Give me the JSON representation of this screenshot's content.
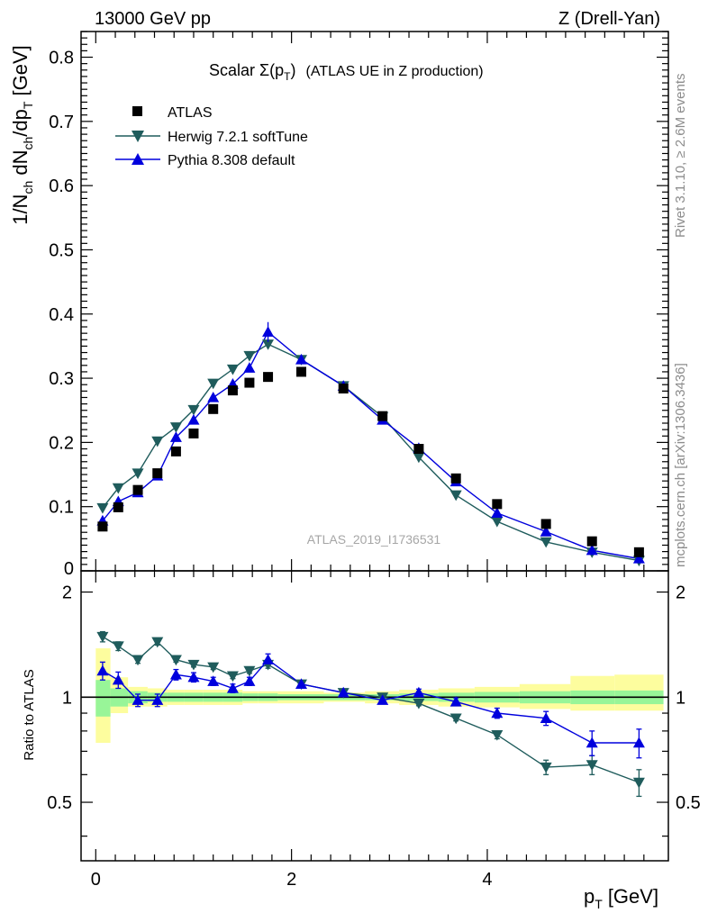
{
  "header": {
    "left": "13000 GeV pp",
    "right": "Z (Drell-Yan)"
  },
  "side_labels": {
    "top": "Rivet 3.1.10, ≥ 2.6M events",
    "bottom": "mcplots.cern.ch [arXiv:1306.3436]"
  },
  "watermark": "ATLAS_2019_I1736531",
  "colors": {
    "atlas": "#000000",
    "herwig": "#1f5c5c",
    "pythia": "#0000dd",
    "band_inner": "#98f598",
    "band_outer": "#fdfd9e"
  },
  "chart_data": [
    {
      "type": "scatter",
      "panel": "main",
      "title": "Scalar Σ(p_T) (ATLAS UE in Z production)",
      "title_parts": {
        "main": "Scalar Σ(p",
        "sub": "T",
        "close": ")",
        "rest": "(ATLAS UE in Z production)"
      },
      "ylabel": "1/N_ch dN_ch/dp_T [GeV]",
      "xlim": [
        -0.15,
        5.85
      ],
      "ylim": [
        0,
        0.84
      ],
      "yticks": [
        0.1,
        0.2,
        0.3,
        0.4,
        0.5,
        0.6,
        0.7,
        0.8
      ],
      "ytick_labels": [
        "0.1",
        "0.2",
        "0.3",
        "0.4",
        "0.5",
        "0.6",
        "0.7",
        "0.8"
      ],
      "ytick_zero_label": "0",
      "legend_position": "top-left",
      "series": [
        {
          "name": "ATLAS",
          "marker": "square",
          "x": [
            0.07,
            0.23,
            0.43,
            0.63,
            0.82,
            1.0,
            1.2,
            1.4,
            1.57,
            1.76,
            2.1,
            2.53,
            2.93,
            3.3,
            3.68,
            4.1,
            4.6,
            5.07,
            5.55
          ],
          "y": [
            0.069,
            0.099,
            0.126,
            0.152,
            0.186,
            0.214,
            0.252,
            0.281,
            0.293,
            0.302,
            0.31,
            0.284,
            0.241,
            0.19,
            0.144,
            0.104,
            0.073,
            0.046,
            0.029
          ]
        },
        {
          "name": "Herwig 7.2.1 softTune",
          "marker": "triangle-down",
          "x": [
            0.07,
            0.23,
            0.43,
            0.63,
            0.82,
            1.0,
            1.2,
            1.4,
            1.57,
            1.76,
            2.1,
            2.53,
            2.93,
            3.3,
            3.68,
            4.1,
            4.6,
            5.07,
            5.55
          ],
          "y": [
            0.098,
            0.129,
            0.152,
            0.202,
            0.224,
            0.251,
            0.292,
            0.314,
            0.335,
            0.353,
            0.329,
            0.288,
            0.24,
            0.177,
            0.118,
            0.077,
            0.045,
            0.029,
            0.016
          ]
        },
        {
          "name": "Pythia 8.308 default",
          "marker": "triangle-up",
          "x": [
            0.07,
            0.23,
            0.43,
            0.63,
            0.82,
            1.0,
            1.2,
            1.4,
            1.57,
            1.76,
            2.1,
            2.53,
            2.93,
            3.3,
            3.68,
            4.1,
            4.6,
            5.07,
            5.55
          ],
          "y": [
            0.078,
            0.108,
            0.122,
            0.148,
            0.208,
            0.235,
            0.27,
            0.291,
            0.316,
            0.372,
            0.329,
            0.288,
            0.235,
            0.191,
            0.139,
            0.09,
            0.061,
            0.032,
            0.019
          ]
        }
      ]
    },
    {
      "type": "line",
      "panel": "ratio",
      "ylabel": "Ratio to ATLAS",
      "xlabel": "p_T [GeV]",
      "xlabel_parts": {
        "main": "p",
        "sub": "T",
        "rest": "[GeV]"
      },
      "xlim": [
        -0.15,
        5.85
      ],
      "ylim": [
        0.34,
        2.3
      ],
      "yticks": [
        0.5,
        1,
        2
      ],
      "ytick_labels": [
        "0.5",
        "1",
        "2"
      ],
      "xticks": [
        0,
        2,
        4
      ],
      "xtick_labels": [
        "0",
        "2",
        "4"
      ],
      "band_edges": [
        0,
        0.15,
        0.33,
        0.53,
        0.73,
        0.9,
        1.1,
        1.3,
        1.5,
        1.66,
        1.86,
        2.33,
        2.75,
        3.1,
        3.5,
        3.87,
        4.33,
        4.85,
        5.3,
        5.8
      ],
      "band_inner": [
        [
          0.88,
          1.12
        ],
        [
          0.94,
          1.06
        ],
        [
          0.96,
          1.04
        ],
        [
          0.97,
          1.03
        ],
        [
          0.97,
          1.03
        ],
        [
          0.97,
          1.03
        ],
        [
          0.97,
          1.03
        ],
        [
          0.97,
          1.03
        ],
        [
          0.975,
          1.025
        ],
        [
          0.975,
          1.025
        ],
        [
          0.98,
          1.02
        ],
        [
          0.98,
          1.02
        ],
        [
          0.98,
          1.02
        ],
        [
          0.975,
          1.025
        ],
        [
          0.97,
          1.03
        ],
        [
          0.965,
          1.035
        ],
        [
          0.96,
          1.04
        ],
        [
          0.955,
          1.045
        ],
        [
          0.955,
          1.045
        ]
      ],
      "band_outer": [
        [
          0.74,
          1.38
        ],
        [
          0.9,
          1.14
        ],
        [
          0.94,
          1.07
        ],
        [
          0.94,
          1.06
        ],
        [
          0.95,
          1.05
        ],
        [
          0.95,
          1.05
        ],
        [
          0.95,
          1.05
        ],
        [
          0.95,
          1.05
        ],
        [
          0.96,
          1.04
        ],
        [
          0.96,
          1.04
        ],
        [
          0.96,
          1.04
        ],
        [
          0.97,
          1.03
        ],
        [
          0.96,
          1.04
        ],
        [
          0.95,
          1.05
        ],
        [
          0.94,
          1.06
        ],
        [
          0.935,
          1.07
        ],
        [
          0.925,
          1.09
        ],
        [
          0.915,
          1.15
        ],
        [
          0.915,
          1.16
        ]
      ],
      "series": [
        {
          "name": "Herwig 7.2.1 softTune",
          "x": [
            0.07,
            0.23,
            0.43,
            0.63,
            0.82,
            1.0,
            1.2,
            1.4,
            1.57,
            1.76,
            2.1,
            2.53,
            2.93,
            3.3,
            3.68,
            4.1,
            4.6,
            5.07,
            5.55
          ],
          "y": [
            1.49,
            1.4,
            1.28,
            1.44,
            1.28,
            1.24,
            1.22,
            1.15,
            1.19,
            1.24,
            1.09,
            1.03,
            1.0,
            0.96,
            0.87,
            0.78,
            0.63,
            0.64,
            0.57
          ],
          "err": [
            0.05,
            0.04,
            0.03,
            0.03,
            0.02,
            0.02,
            0.02,
            0.02,
            0.02,
            0.03,
            0.015,
            0.015,
            0.015,
            0.015,
            0.015,
            0.02,
            0.03,
            0.04,
            0.05
          ]
        },
        {
          "name": "Pythia 8.308 default",
          "x": [
            0.07,
            0.23,
            0.43,
            0.63,
            0.82,
            1.0,
            1.2,
            1.4,
            1.57,
            1.76,
            2.1,
            2.53,
            2.93,
            3.3,
            3.68,
            4.1,
            4.6,
            5.07,
            5.55
          ],
          "y": [
            1.19,
            1.12,
            0.98,
            0.98,
            1.16,
            1.14,
            1.11,
            1.06,
            1.11,
            1.28,
            1.09,
            1.03,
            0.98,
            1.03,
            0.97,
            0.9,
            0.87,
            0.74,
            0.74
          ],
          "err": [
            0.07,
            0.06,
            0.04,
            0.04,
            0.04,
            0.035,
            0.03,
            0.03,
            0.03,
            0.05,
            0.02,
            0.02,
            0.02,
            0.025,
            0.025,
            0.03,
            0.04,
            0.06,
            0.07
          ]
        }
      ]
    }
  ]
}
